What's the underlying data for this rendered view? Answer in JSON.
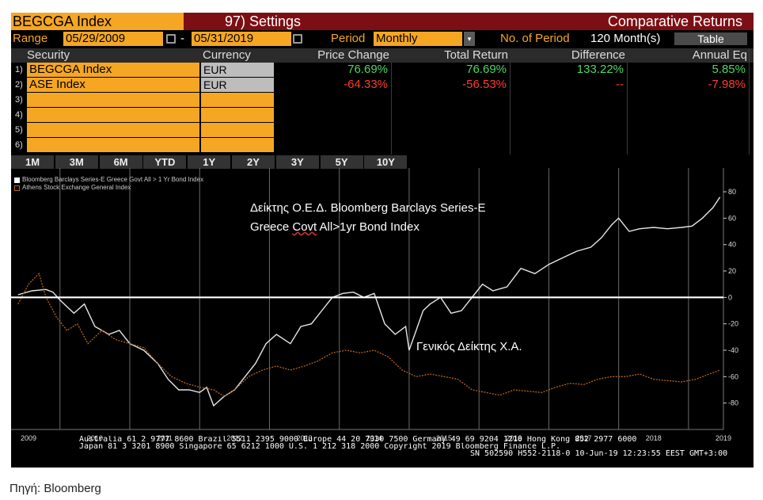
{
  "header": {
    "ticker": "BEGCGA Index",
    "settings": "97) Settings",
    "title": "Comparative Returns"
  },
  "controls": {
    "range_label": "Range",
    "start_date": "05/29/2009",
    "dash": "-",
    "end_date": "05/31/2019",
    "period_label": "Period",
    "period_value": "Monthly",
    "no_of_period_label": "No. of Period",
    "no_of_period_value": "120 Month(s)",
    "table_button": "Table"
  },
  "table": {
    "columns": [
      "Security",
      "Currency",
      "Price Change",
      "Total Return",
      "Difference",
      "Annual Eq"
    ],
    "rows": [
      {
        "num": "1)",
        "security": "BEGCGA Index",
        "currency": "EUR",
        "price_change": "76.69%",
        "total_return": "76.69%",
        "difference": "133.22%",
        "annual_eq": "5.85%"
      },
      {
        "num": "2)",
        "security": "ASE Index",
        "currency": "EUR",
        "price_change": "-64.33%",
        "total_return": "-56.53%",
        "difference": "--",
        "annual_eq": "-7.98%"
      },
      {
        "num": "3)",
        "security": "",
        "currency": "",
        "price_change": "",
        "total_return": "",
        "difference": "",
        "annual_eq": ""
      },
      {
        "num": "4)",
        "security": "",
        "currency": "",
        "price_change": "",
        "total_return": "",
        "difference": "",
        "annual_eq": ""
      },
      {
        "num": "5)",
        "security": "",
        "currency": "",
        "price_change": "",
        "total_return": "",
        "difference": "",
        "annual_eq": ""
      },
      {
        "num": "6)",
        "security": "",
        "currency": "",
        "price_change": "",
        "total_return": "",
        "difference": "",
        "annual_eq": ""
      }
    ]
  },
  "periods": [
    "1M",
    "3M",
    "6M",
    "YTD",
    "1Y",
    "2Y",
    "3Y",
    "5Y",
    "10Y"
  ],
  "annotations": {
    "bond_line1": "Δείκτης Ο.Ε.Δ. Bloomberg Barclays Series-E",
    "bond_line2_a": "Greece ",
    "bond_line2_b": "Covt",
    "bond_line2_c": " All>1yr Bond Index",
    "ase": "Γενικός Δείκτης Χ.Α."
  },
  "footer": {
    "line1": "Australia 61 2 9777 8600 Brazil 5511 2395 9000 Europe 44 20 7330 7500 Germany 49 69 9204 1210 Hong Kong 852 2977 6000",
    "line2": "Japan 81 3 3201 8900          Singapore 65 6212 1000          U.S. 1 212 318 2000          Copyright 2019 Bloomberg Finance L.P.",
    "line3": "SN 502590 H552-2118-0 10-Jun-19 12:23:55 EEST GMT+3:00"
  },
  "source": "Πηγή: Bloomberg",
  "colors": {
    "accent": "#f5a623",
    "bond_series": "#e6e6e6",
    "ase_series": "#b5651d",
    "positive": "#4cd964",
    "negative": "#ff3b30",
    "header_bg": "#7c0f14"
  },
  "chart_data": {
    "type": "line",
    "title": "",
    "xlabel": "",
    "ylabel": "",
    "x_ticks": [
      "2009",
      "2010",
      "2011",
      "2012",
      "2013",
      "2014",
      "2015",
      "2016",
      "2017",
      "2018",
      "2019"
    ],
    "y_ticks": [
      80,
      60,
      40,
      20,
      0,
      -20,
      -40,
      -60,
      -80
    ],
    "ylim": [
      -100,
      92
    ],
    "xlim": [
      2009.3,
      2019.5
    ],
    "grid": "vertical year lines",
    "legend_position": "top-left",
    "zero_line": true,
    "series": [
      {
        "name": "Bloomberg Barclays Series-E Greece Govt All > 1 Yr Bond Index",
        "color": "#e6e6e6",
        "style": "solid",
        "x": [
          2009.4,
          2009.6,
          2009.8,
          2009.9,
          2010.0,
          2010.2,
          2010.35,
          2010.5,
          2010.7,
          2010.85,
          2011.0,
          2011.2,
          2011.4,
          2011.55,
          2011.7,
          2011.85,
          2012.0,
          2012.1,
          2012.2,
          2012.35,
          2012.5,
          2012.65,
          2012.8,
          2012.95,
          2013.1,
          2013.3,
          2013.45,
          2013.6,
          2013.75,
          2013.9,
          2014.05,
          2014.2,
          2014.35,
          2014.5,
          2014.65,
          2014.8,
          2014.95,
          2015.0,
          2015.1,
          2015.2,
          2015.3,
          2015.45,
          2015.6,
          2015.75,
          2015.9,
          2016.05,
          2016.2,
          2016.4,
          2016.6,
          2016.8,
          2017.0,
          2017.2,
          2017.4,
          2017.6,
          2017.75,
          2017.9,
          2018.0,
          2018.15,
          2018.3,
          2018.5,
          2018.7,
          2018.9,
          2019.05,
          2019.2,
          2019.35,
          2019.45
        ],
        "y": [
          2,
          5,
          6,
          4,
          -2,
          -12,
          -5,
          -22,
          -28,
          -25,
          -35,
          -40,
          -50,
          -62,
          -70,
          -70,
          -72,
          -68,
          -82,
          -75,
          -70,
          -60,
          -50,
          -35,
          -28,
          -35,
          -22,
          -20,
          -10,
          0,
          3,
          4,
          0,
          3,
          -20,
          -28,
          -22,
          -40,
          -25,
          -10,
          -5,
          0,
          -12,
          -10,
          0,
          10,
          5,
          8,
          22,
          18,
          25,
          30,
          35,
          38,
          45,
          55,
          60,
          50,
          52,
          53,
          52,
          53,
          54,
          60,
          68,
          76
        ]
      },
      {
        "name": "Athens Stock Exchange General Index",
        "color": "#b5651d",
        "style": "dashed",
        "x": [
          2009.4,
          2009.55,
          2009.7,
          2009.8,
          2009.95,
          2010.1,
          2010.25,
          2010.4,
          2010.6,
          2010.8,
          2011.0,
          2011.2,
          2011.4,
          2011.6,
          2011.8,
          2012.0,
          2012.2,
          2012.35,
          2012.5,
          2012.7,
          2012.9,
          2013.1,
          2013.3,
          2013.5,
          2013.7,
          2013.9,
          2014.1,
          2014.3,
          2014.5,
          2014.7,
          2014.9,
          2015.1,
          2015.3,
          2015.5,
          2015.7,
          2015.9,
          2016.1,
          2016.3,
          2016.5,
          2016.7,
          2016.9,
          2017.1,
          2017.3,
          2017.5,
          2017.7,
          2017.9,
          2018.1,
          2018.3,
          2018.5,
          2018.7,
          2018.9,
          2019.1,
          2019.3,
          2019.45
        ],
        "y": [
          -5,
          10,
          18,
          0,
          -15,
          -25,
          -20,
          -35,
          -25,
          -32,
          -35,
          -38,
          -50,
          -60,
          -65,
          -68,
          -70,
          -75,
          -70,
          -60,
          -55,
          -52,
          -55,
          -52,
          -48,
          -42,
          -40,
          -42,
          -40,
          -45,
          -55,
          -60,
          -58,
          -60,
          -62,
          -70,
          -72,
          -74,
          -70,
          -71,
          -72,
          -68,
          -65,
          -66,
          -62,
          -60,
          -60,
          -58,
          -62,
          -63,
          -64,
          -62,
          -58,
          -55
        ]
      }
    ]
  }
}
